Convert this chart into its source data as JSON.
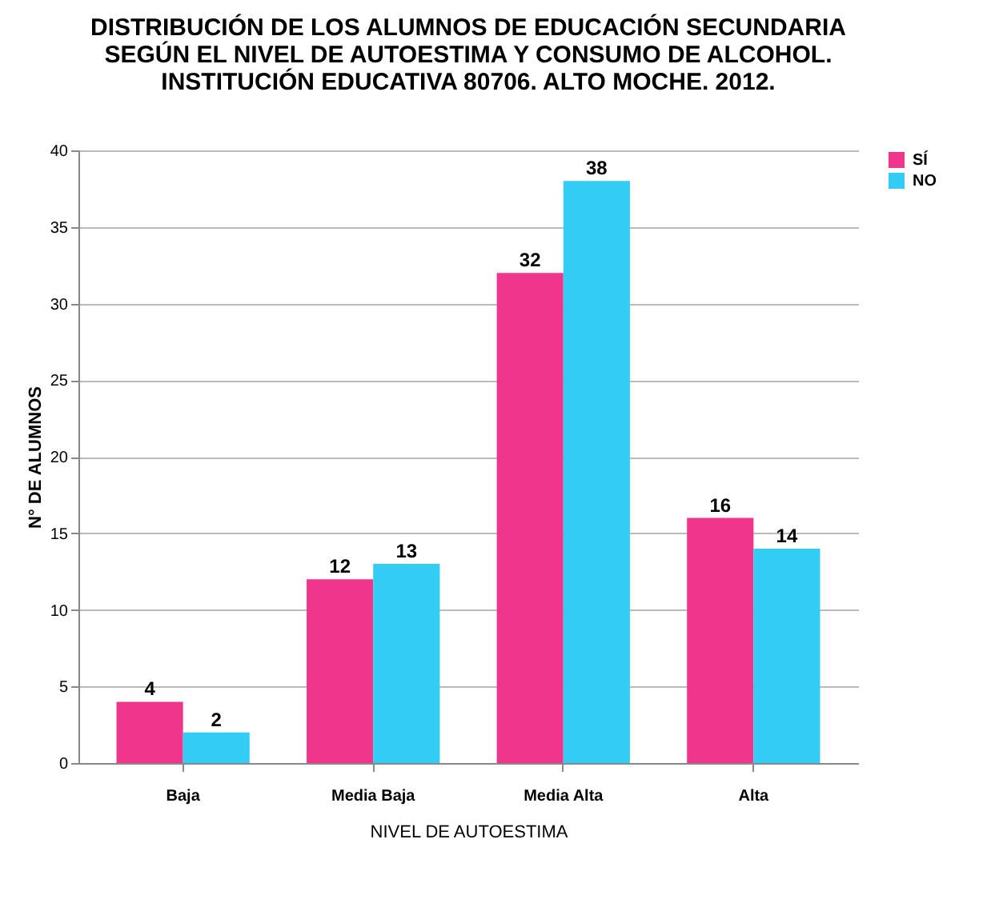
{
  "chart_data": {
    "type": "bar",
    "title": "DISTRIBUCIÓN DE LOS ALUMNOS DE EDUCACIÓN SECUNDARIA\nSEGÚN EL NIVEL DE AUTOESTIMA Y CONSUMO DE ALCOHOL.\nINSTITUCIÓN EDUCATIVA 80706. ALTO MOCHE. 2012.",
    "xlabel": "NIVEL DE AUTOESTIMA",
    "ylabel": "N°  DE  ALUMNOS",
    "categories": [
      "Baja",
      "Media Baja",
      "Media Alta",
      "Alta"
    ],
    "series": [
      {
        "name": "SÍ",
        "color": "#f0358c",
        "values": [
          4,
          12,
          32,
          16
        ]
      },
      {
        "name": "NO",
        "color": "#33ccf5",
        "values": [
          2,
          13,
          38,
          14
        ]
      }
    ],
    "ylim": [
      0,
      40
    ],
    "yticks": [
      0,
      5,
      10,
      15,
      20,
      25,
      30,
      35,
      40
    ],
    "grid": "y",
    "legend": "right",
    "data_labels": true
  }
}
